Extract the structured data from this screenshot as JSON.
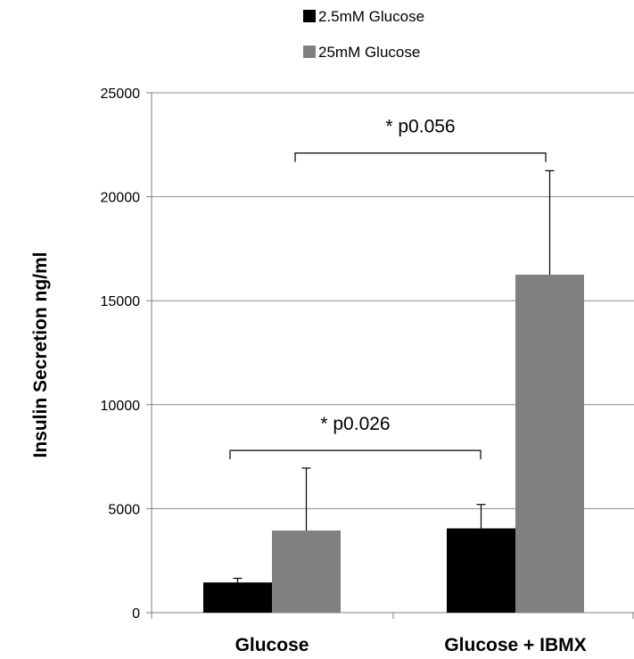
{
  "chart_data": {
    "type": "bar",
    "categories": [
      "Glucose",
      "Glucose + IBMX"
    ],
    "series": [
      {
        "name": "2.5mM Glucose",
        "color": "#000000",
        "values": [
          1450,
          4050
        ],
        "errors": [
          200,
          1150
        ]
      },
      {
        "name": "25mM Glucose",
        "color": "#808080",
        "values": [
          3950,
          16250
        ],
        "errors": [
          3000,
          5000
        ]
      }
    ],
    "ylabel": "Insulin Secretion ng/ml",
    "xlabel": "",
    "ylim": [
      0,
      25000
    ],
    "yticks": [
      0,
      5000,
      10000,
      15000,
      20000,
      25000
    ],
    "grid": true,
    "legend_position": "top-center",
    "annotations": [
      {
        "text": "* p0.026",
        "from": "Glucose",
        "to": "Glucose + IBMX",
        "y": 7800
      },
      {
        "text": "* p0.056",
        "from": "Glucose",
        "to": "Glucose + IBMX",
        "y": 22100
      }
    ]
  }
}
